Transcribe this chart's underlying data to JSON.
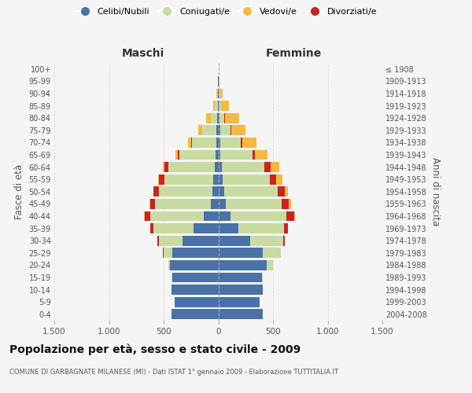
{
  "age_groups": [
    "0-4",
    "5-9",
    "10-14",
    "15-19",
    "20-24",
    "25-29",
    "30-34",
    "35-39",
    "40-44",
    "45-49",
    "50-54",
    "55-59",
    "60-64",
    "65-69",
    "70-74",
    "75-79",
    "80-84",
    "85-89",
    "90-94",
    "95-99",
    "100+"
  ],
  "birth_years": [
    "2004-2008",
    "1999-2003",
    "1994-1998",
    "1989-1993",
    "1984-1988",
    "1979-1983",
    "1974-1978",
    "1969-1973",
    "1964-1968",
    "1959-1963",
    "1954-1958",
    "1949-1953",
    "1944-1948",
    "1939-1943",
    "1934-1938",
    "1929-1933",
    "1924-1928",
    "1919-1923",
    "1914-1918",
    "1909-1913",
    "≤ 1908"
  ],
  "males": {
    "celibi": [
      430,
      400,
      430,
      420,
      440,
      420,
      330,
      230,
      130,
      70,
      55,
      45,
      35,
      25,
      20,
      15,
      10,
      5,
      5,
      2,
      0
    ],
    "coniugati": [
      0,
      0,
      0,
      5,
      15,
      80,
      210,
      360,
      490,
      510,
      490,
      450,
      420,
      330,
      220,
      130,
      55,
      25,
      8,
      3,
      0
    ],
    "vedovi": [
      0,
      0,
      0,
      0,
      0,
      0,
      0,
      0,
      5,
      5,
      5,
      10,
      15,
      20,
      25,
      30,
      40,
      20,
      5,
      2,
      0
    ],
    "divorziati": [
      0,
      0,
      0,
      0,
      0,
      5,
      15,
      30,
      55,
      45,
      45,
      45,
      35,
      15,
      10,
      5,
      5,
      0,
      0,
      0,
      0
    ]
  },
  "females": {
    "nubili": [
      405,
      380,
      410,
      400,
      445,
      410,
      290,
      180,
      110,
      70,
      55,
      40,
      30,
      20,
      15,
      15,
      10,
      5,
      5,
      2,
      0
    ],
    "coniugate": [
      0,
      0,
      0,
      10,
      55,
      160,
      300,
      420,
      510,
      510,
      490,
      430,
      390,
      290,
      190,
      100,
      45,
      20,
      10,
      3,
      0
    ],
    "vedove": [
      0,
      0,
      0,
      0,
      0,
      0,
      5,
      5,
      10,
      20,
      30,
      55,
      85,
      115,
      130,
      130,
      130,
      70,
      25,
      5,
      0
    ],
    "divorziate": [
      0,
      0,
      0,
      0,
      0,
      5,
      15,
      35,
      75,
      65,
      60,
      60,
      55,
      25,
      15,
      5,
      5,
      0,
      0,
      0,
      0
    ]
  },
  "colors": {
    "celibi": "#4a72a8",
    "coniugati": "#c8dba0",
    "vedovi": "#f5b942",
    "divorziati": "#cc2222"
  },
  "legend_labels": [
    "Celibi/Nubili",
    "Coniugati/e",
    "Vedovi/e",
    "Divorziati/e"
  ],
  "title": "Popolazione per età, sesso e stato civile - 2009",
  "subtitle": "COMUNE DI GARBAGNATE MILANESE (MI) - Dati ISTAT 1° gennaio 2009 - Elaborazione TUTTITALIA.IT",
  "xlabel_left": "Maschi",
  "xlabel_right": "Femmine",
  "ylabel_left": "Fasce di età",
  "ylabel_right": "Anni di nascita",
  "xlim": 1500,
  "bg_color": "#f5f5f5",
  "grid_color": "#cccccc"
}
